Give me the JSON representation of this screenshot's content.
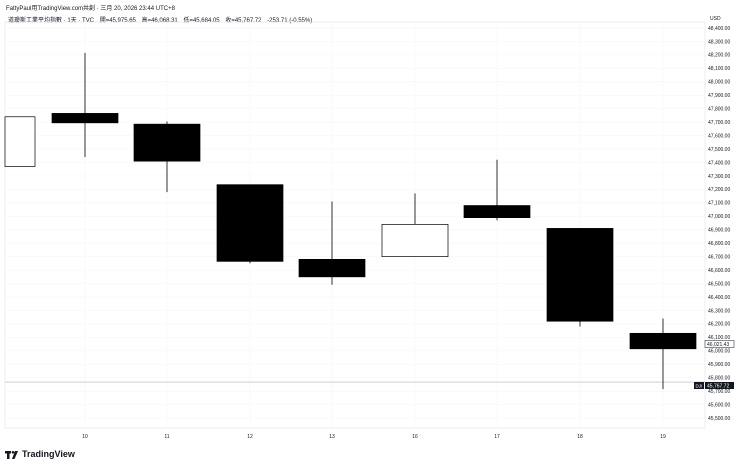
{
  "header": {
    "attribution": "FattyPaul用TradingView.com共創 · 三月 20, 2026 23:44 UTC+8",
    "symbol": "道瓊斯工業平均指數 · 1天 · TVC",
    "open": "開=45,975.65",
    "high": "高=46,068.31",
    "low": "低=45,684.05",
    "close": "收=45,767.72",
    "change": "-253.71 (-0.55%)"
  },
  "currency": "USD",
  "logo": "TradingView",
  "chart_data": {
    "type": "candlestick",
    "ylim": [
      45450,
      48450
    ],
    "y_ticks": [
      "48,400.00",
      "48,300.00",
      "48,200.00",
      "48,100.00",
      "48,000.00",
      "47,900.00",
      "47,800.00",
      "47,700.00",
      "47,600.00",
      "47,500.00",
      "47,400.00",
      "47,300.00",
      "47,200.00",
      "47,100.00",
      "47,000.00",
      "46,900.00",
      "46,800.00",
      "46,700.00",
      "46,600.00",
      "46,500.00",
      "46,400.00",
      "46,300.00",
      "46,200.00",
      "46,100.00",
      "46,000.00",
      "45,900.00",
      "45,800.00",
      "45,700.00",
      "45,600.00",
      "45,500.00"
    ],
    "y_tick_values": [
      48400,
      48300,
      48200,
      48100,
      48000,
      47900,
      47800,
      47700,
      47600,
      47500,
      47400,
      47300,
      47200,
      47100,
      47000,
      46900,
      46800,
      46700,
      46600,
      46500,
      46400,
      46300,
      46200,
      46100,
      46000,
      45900,
      45800,
      45700,
      45600,
      45500
    ],
    "candles": [
      {
        "label": "",
        "open": 47370,
        "high": 47740,
        "low": 47370,
        "close": 47740
      },
      {
        "label": "10",
        "open": 47765,
        "high": 48215,
        "low": 47440,
        "close": 47695
      },
      {
        "label": "11",
        "open": 47685,
        "high": 47705,
        "low": 47180,
        "close": 47410
      },
      {
        "label": "12",
        "open": 47235,
        "high": 47235,
        "low": 46650,
        "close": 46665
      },
      {
        "label": "13",
        "open": 46680,
        "high": 47110,
        "low": 46490,
        "close": 46550
      },
      {
        "label": "16",
        "open": 46700,
        "high": 47170,
        "low": 46700,
        "close": 46940
      },
      {
        "label": "17",
        "open": 47080,
        "high": 47420,
        "low": 46970,
        "close": 46990
      },
      {
        "label": "18",
        "open": 46910,
        "high": 46910,
        "low": 46180,
        "close": 46220
      },
      {
        "label": "19",
        "open": 46130,
        "high": 46240,
        "low": 45715,
        "close": 46015
      }
    ],
    "price_labels": [
      {
        "text": "46,021.43",
        "value": 46021.43,
        "style": "outline"
      },
      {
        "text": "45,767.72",
        "value": 45767.72,
        "tag": "DJI",
        "style": "filled"
      }
    ],
    "up_color": "#ffffff",
    "down_color": "#000000",
    "grid": true
  }
}
